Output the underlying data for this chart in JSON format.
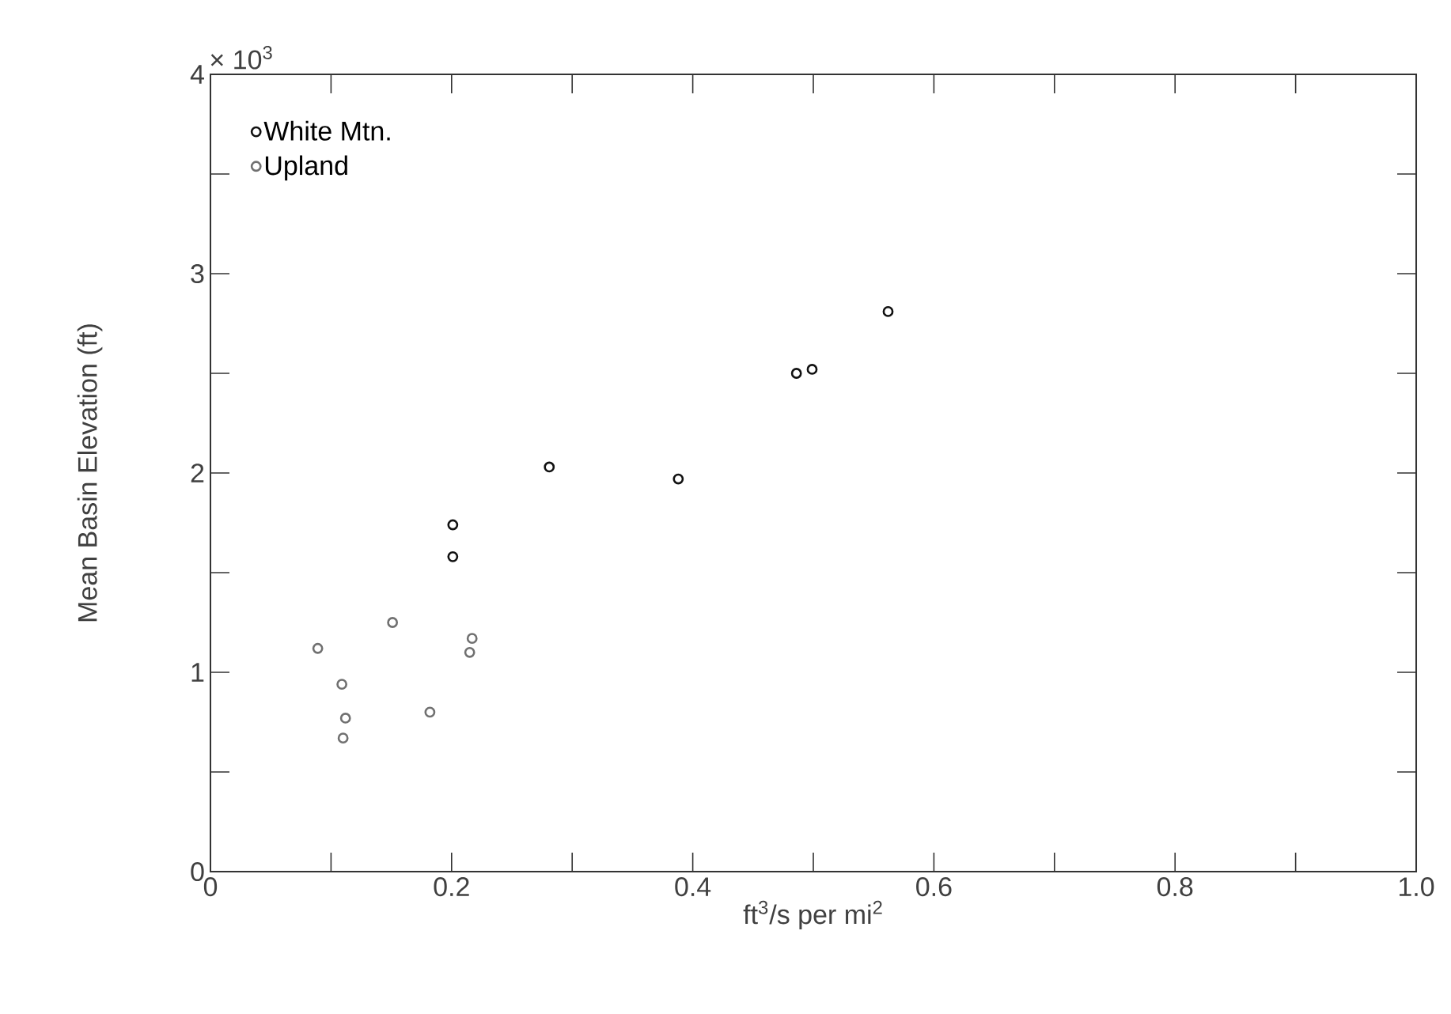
{
  "chart_data": {
    "type": "scatter",
    "xlabel": "ft$^{3}$/s per mi$^{2}$",
    "ylabel": "Mean Basin Elevation (ft)",
    "xlim": [
      0,
      1.0
    ],
    "ylim": [
      0,
      4
    ],
    "xticks": [
      0,
      {
        "value": 0.1,
        "label": null
      },
      0.2,
      {
        "value": 0.3,
        "label": null
      },
      0.4,
      {
        "value": 0.5,
        "label": null
      },
      0.6,
      {
        "value": 0.7,
        "label": null
      },
      0.8,
      {
        "value": 0.9,
        "label": null
      },
      {
        "value": 1.0,
        "label": "1.0"
      }
    ],
    "yticks": [
      0,
      {
        "value": 0.5,
        "label": null
      },
      1,
      {
        "value": 1.5,
        "label": null
      },
      2,
      {
        "value": 2.5,
        "label": null
      },
      3,
      {
        "value": 3.5,
        "label": null
      },
      4
    ],
    "annotations": [
      "× 10$^{3}$"
    ],
    "legend": "top left",
    "series": [
      {
        "name": "White Mtn.",
        "color": "#111111",
        "x": [
          0.201,
          0.201,
          0.281,
          0.388,
          0.486,
          0.499,
          0.562
        ],
        "values": [
          1.74,
          1.58,
          2.03,
          1.97,
          2.5,
          2.52,
          2.81
        ]
      },
      {
        "name": "Upland",
        "color": "#707070",
        "x": [
          0.089,
          0.109,
          0.112,
          0.11,
          0.151,
          0.182,
          0.217,
          0.215
        ],
        "values": [
          1.12,
          0.94,
          0.77,
          0.67,
          1.25,
          0.8,
          1.17,
          1.1
        ]
      }
    ]
  }
}
